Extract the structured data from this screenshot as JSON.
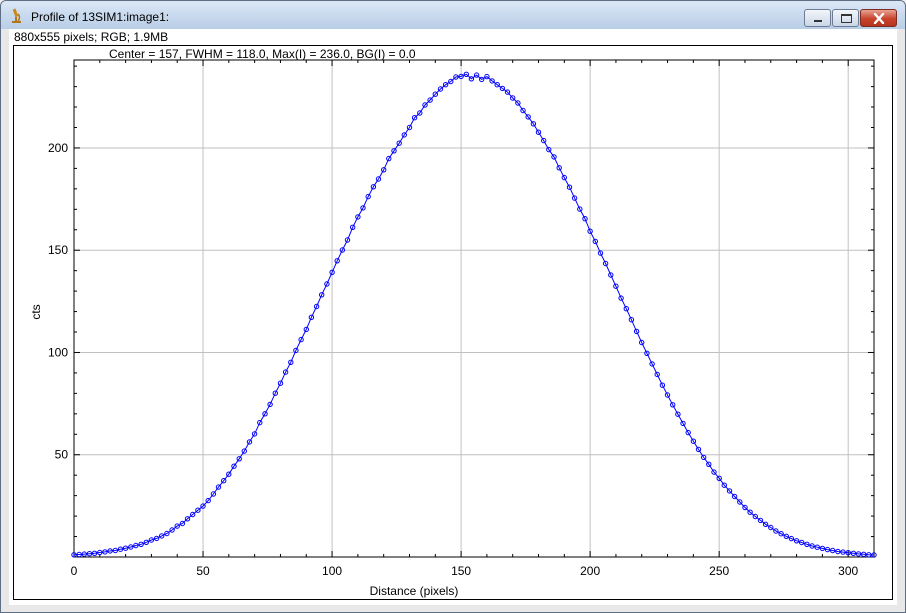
{
  "window": {
    "title": "Profile of 13SIM1:image1:",
    "subtitle": "880x555 pixels; RGB; 1.9MB"
  },
  "colors": {
    "series": "#0000ff",
    "grid": "#c0c0c0",
    "close_button": "#c8432c"
  },
  "chart_data": {
    "type": "line",
    "annotation": "Center = 157,  FWHM = 118.0, Max(I) = 236.0, BG(I) = 0.0",
    "xlabel": "Distance (pixels)",
    "ylabel": "cts",
    "xlim": [
      0,
      310
    ],
    "ylim": [
      0,
      243
    ],
    "xticks": [
      0,
      50,
      100,
      150,
      200,
      250,
      300
    ],
    "yticks": [
      50,
      100,
      150,
      200
    ],
    "grid": true,
    "markers": "open-circle",
    "series": [
      {
        "values": [
          [
            0,
            1.1
          ],
          [
            2,
            1.2
          ],
          [
            4,
            1.4
          ],
          [
            6,
            1.6
          ],
          [
            8,
            1.8
          ],
          [
            10,
            2.2
          ],
          [
            12,
            2.5
          ],
          [
            14,
            3.0
          ],
          [
            16,
            3.2
          ],
          [
            18,
            3.8
          ],
          [
            20,
            4.3
          ],
          [
            22,
            4.9
          ],
          [
            24,
            5.6
          ],
          [
            26,
            6.2
          ],
          [
            28,
            7.2
          ],
          [
            30,
            8.3
          ],
          [
            32,
            9.1
          ],
          [
            34,
            10.3
          ],
          [
            36,
            11.5
          ],
          [
            38,
            13.2
          ],
          [
            40,
            15.1
          ],
          [
            42,
            16.4
          ],
          [
            44,
            18.7
          ],
          [
            46,
            20.8
          ],
          [
            48,
            22.9
          ],
          [
            50,
            24.9
          ],
          [
            52,
            27.6
          ],
          [
            54,
            30.8
          ],
          [
            56,
            34.2
          ],
          [
            58,
            37.3
          ],
          [
            60,
            40.5
          ],
          [
            62,
            44.4
          ],
          [
            64,
            48.0
          ],
          [
            66,
            51.8
          ],
          [
            68,
            56.3
          ],
          [
            70,
            60.2
          ],
          [
            72,
            65.7
          ],
          [
            74,
            70.0
          ],
          [
            76,
            74.6
          ],
          [
            78,
            80.1
          ],
          [
            80,
            85.0
          ],
          [
            82,
            90.4
          ],
          [
            84,
            95.2
          ],
          [
            86,
            101.0
          ],
          [
            88,
            106.3
          ],
          [
            90,
            111.3
          ],
          [
            92,
            117.2
          ],
          [
            94,
            122.5
          ],
          [
            96,
            128.2
          ],
          [
            98,
            133.5
          ],
          [
            100,
            139.2
          ],
          [
            102,
            144.8
          ],
          [
            104,
            150.1
          ],
          [
            106,
            155.0
          ],
          [
            108,
            161.2
          ],
          [
            110,
            166.3
          ],
          [
            112,
            170.7
          ],
          [
            114,
            176.2
          ],
          [
            116,
            181.0
          ],
          [
            118,
            184.8
          ],
          [
            120,
            189.3
          ],
          [
            122,
            194.8
          ],
          [
            124,
            198.6
          ],
          [
            126,
            202.3
          ],
          [
            128,
            206.4
          ],
          [
            130,
            210.0
          ],
          [
            132,
            214.8
          ],
          [
            134,
            217.1
          ],
          [
            136,
            221.0
          ],
          [
            138,
            223.4
          ],
          [
            140,
            226.3
          ],
          [
            142,
            228.8
          ],
          [
            144,
            230.9
          ],
          [
            146,
            232.5
          ],
          [
            148,
            234.7
          ],
          [
            150,
            235.0
          ],
          [
            152,
            236.0
          ],
          [
            154,
            233.8
          ],
          [
            156,
            235.6
          ],
          [
            158,
            233.5
          ],
          [
            160,
            234.9
          ],
          [
            162,
            232.8
          ],
          [
            164,
            230.9
          ],
          [
            166,
            229.1
          ],
          [
            168,
            227.3
          ],
          [
            170,
            224.4
          ],
          [
            172,
            222.0
          ],
          [
            174,
            218.3
          ],
          [
            176,
            215.2
          ],
          [
            178,
            211.8
          ],
          [
            180,
            207.7
          ],
          [
            182,
            203.6
          ],
          [
            184,
            199.2
          ],
          [
            186,
            195.6
          ],
          [
            188,
            190.3
          ],
          [
            190,
            185.5
          ],
          [
            192,
            180.8
          ],
          [
            194,
            175.5
          ],
          [
            196,
            170.1
          ],
          [
            198,
            165.4
          ],
          [
            200,
            159.3
          ],
          [
            202,
            154.3
          ],
          [
            204,
            148.6
          ],
          [
            206,
            143.5
          ],
          [
            208,
            137.9
          ],
          [
            210,
            132.4
          ],
          [
            212,
            126.6
          ],
          [
            214,
            121.4
          ],
          [
            216,
            116.0
          ],
          [
            218,
            110.3
          ],
          [
            220,
            104.9
          ],
          [
            222,
            99.6
          ],
          [
            224,
            94.4
          ],
          [
            226,
            89.3
          ],
          [
            228,
            84.0
          ],
          [
            230,
            79.2
          ],
          [
            232,
            74.4
          ],
          [
            234,
            69.8
          ],
          [
            236,
            65.3
          ],
          [
            238,
            60.8
          ],
          [
            240,
            56.6
          ],
          [
            242,
            52.6
          ],
          [
            244,
            48.7
          ],
          [
            246,
            45.3
          ],
          [
            248,
            41.5
          ],
          [
            250,
            38.5
          ],
          [
            252,
            35.1
          ],
          [
            254,
            32.3
          ],
          [
            256,
            29.6
          ],
          [
            258,
            26.9
          ],
          [
            260,
            24.2
          ],
          [
            262,
            21.9
          ],
          [
            264,
            19.8
          ],
          [
            266,
            17.9
          ],
          [
            268,
            16.0
          ],
          [
            270,
            14.4
          ],
          [
            272,
            12.7
          ],
          [
            274,
            11.4
          ],
          [
            276,
            10.1
          ],
          [
            278,
            9.0
          ],
          [
            280,
            7.9
          ],
          [
            282,
            7.1
          ],
          [
            284,
            6.2
          ],
          [
            286,
            5.4
          ],
          [
            288,
            4.8
          ],
          [
            290,
            4.2
          ],
          [
            292,
            3.6
          ],
          [
            294,
            3.2
          ],
          [
            296,
            2.7
          ],
          [
            298,
            2.4
          ],
          [
            300,
            2.1
          ],
          [
            302,
            1.8
          ],
          [
            304,
            1.5
          ],
          [
            306,
            1.3
          ],
          [
            308,
            1.1
          ],
          [
            310,
            1.0
          ]
        ]
      }
    ]
  }
}
